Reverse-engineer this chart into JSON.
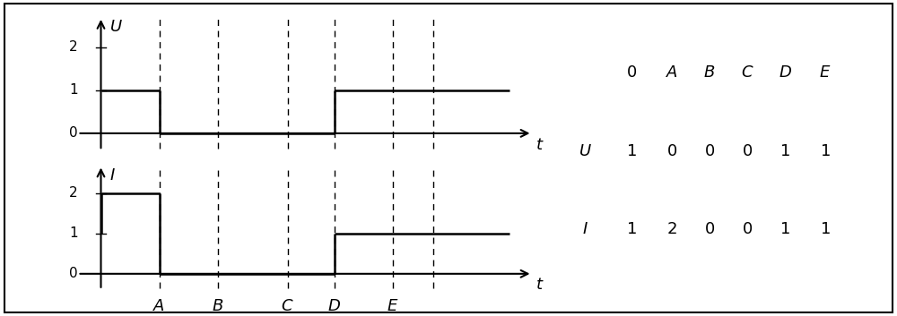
{
  "fig_width": 10.0,
  "fig_height": 3.53,
  "dpi": 100,
  "background_color": "#ffffff",
  "border_color": "#000000",
  "t0": 0.0,
  "tA": 1.0,
  "tB": 2.0,
  "tC": 3.2,
  "tD": 4.0,
  "tE": 5.0,
  "t5": 5.7,
  "tend": 7.0,
  "xlim": [
    -0.5,
    7.5
  ],
  "ylim_U": [
    -0.5,
    2.8
  ],
  "ylim_I": [
    -0.5,
    2.8
  ],
  "line_color": "#000000",
  "signal_linewidth": 1.8,
  "dashed_linewidth": 1.0,
  "axis_linewidth": 1.5,
  "fontsize_label": 13,
  "fontsize_tick": 11,
  "fontsize_table": 13,
  "text_color": "#000000",
  "labels_ABCDE": [
    "A",
    "B",
    "C",
    "D",
    "E"
  ],
  "table_col_labels": [
    "0",
    "A",
    "B",
    "C",
    "D",
    "E"
  ],
  "table_U_values": [
    "1",
    "0",
    "0",
    "0",
    "1",
    "1"
  ],
  "table_I_values": [
    "1",
    "2",
    "0",
    "0",
    "1",
    "1"
  ]
}
